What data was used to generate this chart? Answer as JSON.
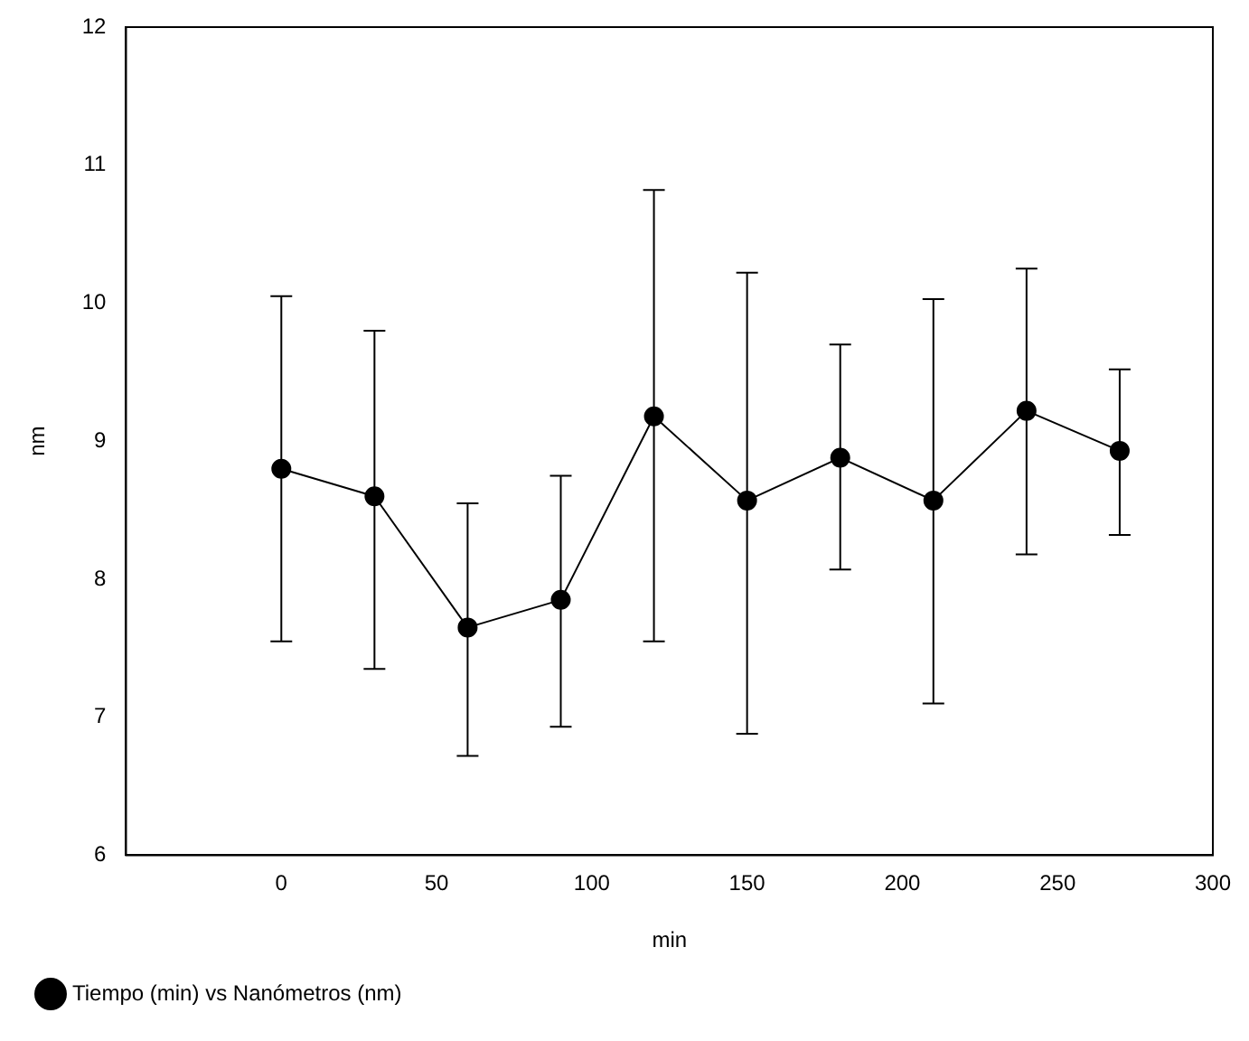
{
  "chart_data": {
    "type": "line",
    "xlabel": "min",
    "ylabel": "nm",
    "x": [
      0,
      30,
      60,
      90,
      120,
      150,
      180,
      210,
      240,
      270
    ],
    "series": [
      {
        "name": "Tiempo (min) vs Nanómetros (nm)",
        "color": "#000000",
        "values": [
          8.8,
          8.6,
          7.65,
          7.85,
          9.18,
          8.57,
          8.88,
          8.57,
          9.22,
          8.93
        ],
        "errors": [
          [
            7.55,
            10.05
          ],
          [
            7.35,
            9.8
          ],
          [
            6.72,
            8.55
          ],
          [
            6.93,
            8.75
          ],
          [
            7.55,
            10.82
          ],
          [
            6.88,
            10.22
          ],
          [
            8.07,
            9.7
          ],
          [
            7.1,
            10.03
          ],
          [
            8.18,
            10.25
          ],
          [
            8.32,
            9.52
          ]
        ]
      }
    ],
    "xlim": [
      -50,
      300
    ],
    "xticks": [
      0,
      50,
      100,
      150,
      200,
      250,
      300
    ],
    "ylim": [
      6,
      12
    ],
    "yticks": [
      6,
      7,
      8,
      9,
      10,
      11,
      12
    ],
    "marker": "circle",
    "line_style": "solid",
    "grid": false,
    "legend": "bottom left"
  }
}
